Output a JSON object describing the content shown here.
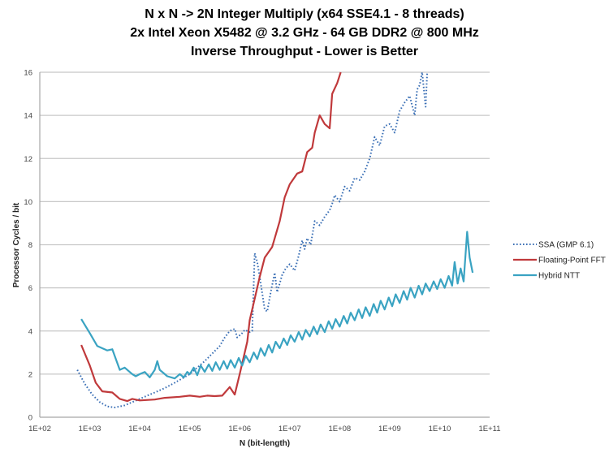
{
  "chart_data": {
    "type": "line",
    "title": [
      "N x N -> 2N Integer Multiply (x64 SSE4.1 - 8 threads)",
      "2x Intel Xeon X5482 @ 3.2 GHz - 64 GB DDR2 @ 800 MHz",
      "Inverse Throughput - Lower is Better"
    ],
    "xlabel": "N (bit-length)",
    "ylabel": "Processor Cycles / bit",
    "xscale": "log10",
    "xlim": [
      100,
      100000000000
    ],
    "ylim": [
      0,
      16
    ],
    "xticks": [
      "1E+02",
      "1E+03",
      "1E+04",
      "1E+05",
      "1E+06",
      "1E+07",
      "1E+08",
      "1E+09",
      "1E+10",
      "1E+11"
    ],
    "yticks": [
      "0",
      "2",
      "4",
      "6",
      "8",
      "10",
      "12",
      "14",
      "16"
    ],
    "grid": "horizontal",
    "legend_position": "right",
    "series": [
      {
        "name": "SSA (GMP 6.1)",
        "color": "#3a6fb5",
        "style": "dotted",
        "log10_x": [
          2.75,
          2.9,
          3.05,
          3.2,
          3.35,
          3.5,
          3.7,
          3.85,
          4.0,
          4.15,
          4.3,
          4.5,
          4.7,
          4.85,
          5.0,
          5.15,
          5.3,
          5.45,
          5.6,
          5.7,
          5.8,
          5.9,
          5.95,
          6.05,
          6.1,
          6.2,
          6.25,
          6.3,
          6.35,
          6.42,
          6.5,
          6.55,
          6.62,
          6.7,
          6.75,
          6.85,
          6.92,
          7.0,
          7.1,
          7.18,
          7.25,
          7.3,
          7.35,
          7.42,
          7.5,
          7.6,
          7.7,
          7.8,
          7.85,
          7.9,
          8.0,
          8.1,
          8.2,
          8.3,
          8.4,
          8.5,
          8.6,
          8.7,
          8.8,
          8.9,
          9.0,
          9.1,
          9.2,
          9.3,
          9.4,
          9.5,
          9.55,
          9.6,
          9.65,
          9.72,
          9.75
        ],
        "values": [
          2.2,
          1.55,
          1.05,
          0.7,
          0.5,
          0.45,
          0.55,
          0.7,
          0.85,
          1.0,
          1.15,
          1.35,
          1.6,
          1.8,
          2.0,
          2.3,
          2.6,
          2.95,
          3.3,
          3.7,
          4.0,
          4.1,
          3.7,
          3.9,
          4.05,
          3.95,
          4.0,
          7.6,
          7.2,
          6.2,
          5.0,
          4.9,
          5.8,
          6.7,
          5.8,
          6.6,
          6.9,
          7.1,
          6.8,
          7.5,
          8.2,
          7.8,
          8.3,
          8.0,
          9.1,
          8.9,
          9.3,
          9.6,
          9.9,
          10.3,
          10.0,
          10.7,
          10.5,
          11.1,
          11.0,
          11.4,
          12.0,
          13.0,
          12.6,
          13.5,
          13.6,
          13.2,
          14.2,
          14.6,
          14.9,
          14.0,
          15.2,
          15.4,
          16.0,
          14.4,
          16.0
        ]
      },
      {
        "name": "Floating-Point FFT",
        "color": "#c0393b",
        "style": "solid",
        "log10_x": [
          2.83,
          3.0,
          3.12,
          3.25,
          3.45,
          3.6,
          3.75,
          3.85,
          4.0,
          4.3,
          4.5,
          4.8,
          5.0,
          5.2,
          5.35,
          5.5,
          5.65,
          5.8,
          5.9,
          6.0,
          6.15,
          6.2,
          6.3,
          6.4,
          6.5,
          6.65,
          6.8,
          6.9,
          7.0,
          7.15,
          7.25,
          7.35,
          7.45,
          7.5,
          7.6,
          7.7,
          7.8,
          7.85,
          7.95,
          8.02
        ],
        "values": [
          3.35,
          2.4,
          1.6,
          1.2,
          1.15,
          0.85,
          0.75,
          0.85,
          0.78,
          0.82,
          0.9,
          0.95,
          1.0,
          0.95,
          1.0,
          0.98,
          1.0,
          1.4,
          1.05,
          2.0,
          3.5,
          4.5,
          5.5,
          6.5,
          7.4,
          7.9,
          9.1,
          10.2,
          10.8,
          11.3,
          11.4,
          12.3,
          12.5,
          13.2,
          14.0,
          13.6,
          13.4,
          15.0,
          15.5,
          16.0
        ]
      },
      {
        "name": "Hybrid NTT",
        "color": "#3aa3c2",
        "style": "solid",
        "log10_x": [
          2.83,
          3.0,
          3.15,
          3.25,
          3.35,
          3.45,
          3.6,
          3.7,
          3.85,
          3.92,
          4.0,
          4.1,
          4.2,
          4.3,
          4.35,
          4.4,
          4.55,
          4.7,
          4.8,
          4.88,
          4.95,
          5.0,
          5.08,
          5.15,
          5.22,
          5.3,
          5.38,
          5.45,
          5.52,
          5.6,
          5.68,
          5.75,
          5.82,
          5.9,
          5.98,
          6.05,
          6.12,
          6.2,
          6.28,
          6.35,
          6.42,
          6.5,
          6.58,
          6.65,
          6.72,
          6.8,
          6.88,
          6.95,
          7.02,
          7.1,
          7.18,
          7.25,
          7.32,
          7.4,
          7.48,
          7.55,
          7.62,
          7.7,
          7.78,
          7.85,
          7.92,
          8.0,
          8.08,
          8.15,
          8.22,
          8.3,
          8.38,
          8.45,
          8.52,
          8.6,
          8.68,
          8.75,
          8.82,
          8.9,
          8.98,
          9.05,
          9.12,
          9.2,
          9.28,
          9.35,
          9.42,
          9.5,
          9.58,
          9.65,
          9.72,
          9.8,
          9.88,
          9.95,
          10.02,
          10.1,
          10.18,
          10.25,
          10.3,
          10.36,
          10.42,
          10.48,
          10.55,
          10.6,
          10.66
        ],
        "values": [
          4.55,
          3.9,
          3.3,
          3.2,
          3.1,
          3.15,
          2.2,
          2.3,
          2.0,
          1.9,
          2.0,
          2.1,
          1.85,
          2.2,
          2.6,
          2.2,
          1.9,
          1.8,
          2.0,
          1.85,
          2.1,
          2.0,
          2.3,
          1.95,
          2.4,
          2.1,
          2.45,
          2.15,
          2.55,
          2.2,
          2.6,
          2.25,
          2.65,
          2.3,
          2.75,
          2.4,
          2.85,
          2.55,
          3.0,
          2.7,
          3.2,
          2.85,
          3.35,
          3.0,
          3.5,
          3.2,
          3.65,
          3.35,
          3.8,
          3.5,
          3.95,
          3.6,
          4.05,
          3.75,
          4.2,
          3.85,
          4.3,
          3.95,
          4.45,
          4.1,
          4.55,
          4.2,
          4.7,
          4.35,
          4.85,
          4.5,
          5.0,
          4.6,
          5.1,
          4.7,
          5.25,
          4.85,
          5.4,
          5.0,
          5.55,
          5.15,
          5.7,
          5.3,
          5.85,
          5.45,
          6.0,
          5.55,
          6.1,
          5.7,
          6.2,
          5.85,
          6.3,
          5.95,
          6.4,
          6.0,
          6.55,
          6.1,
          7.2,
          6.2,
          6.9,
          6.3,
          8.6,
          7.4,
          6.7
        ]
      }
    ]
  }
}
